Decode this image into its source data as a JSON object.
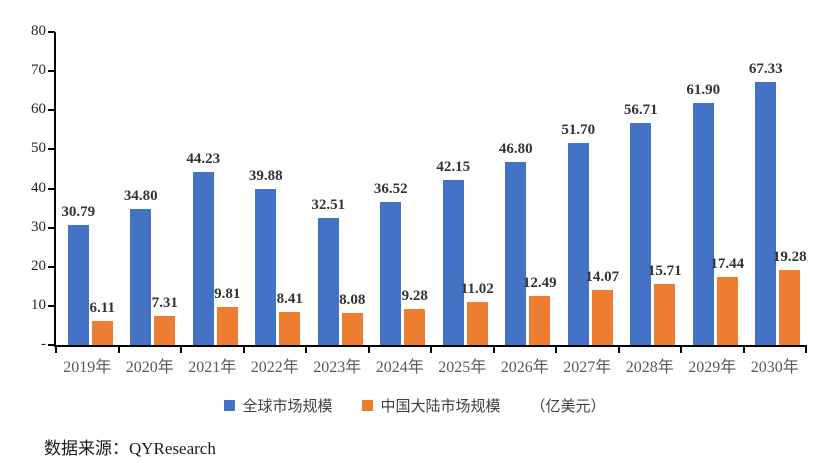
{
  "chart_data": {
    "type": "bar",
    "title": "",
    "categories": [
      "2019年",
      "2020年",
      "2021年",
      "2022年",
      "2023年",
      "2024年",
      "2025年",
      "2026年",
      "2027年",
      "2028年",
      "2029年",
      "2030年"
    ],
    "series": [
      {
        "name": "全球市场规模",
        "color": "#4472C4",
        "values": [
          30.79,
          34.8,
          44.23,
          39.88,
          32.51,
          36.52,
          42.15,
          46.8,
          51.7,
          56.71,
          61.9,
          67.33
        ]
      },
      {
        "name": "中国大陆市场规模",
        "color": "#ED7D31",
        "values": [
          6.11,
          7.31,
          9.81,
          8.41,
          8.08,
          9.28,
          11.02,
          12.49,
          14.07,
          15.71,
          17.44,
          19.28
        ]
      }
    ],
    "unit_label": "（亿美元）",
    "ylim": [
      0,
      80
    ],
    "ytick_labels": [
      "80",
      "70",
      "60",
      "50",
      "40",
      "30",
      "20",
      "10",
      "-"
    ],
    "grid": false,
    "legend_position": "bottom",
    "data_labels": true,
    "label_format_decimals": 2
  },
  "footer": {
    "source_text": "数据来源：QYResearch"
  }
}
